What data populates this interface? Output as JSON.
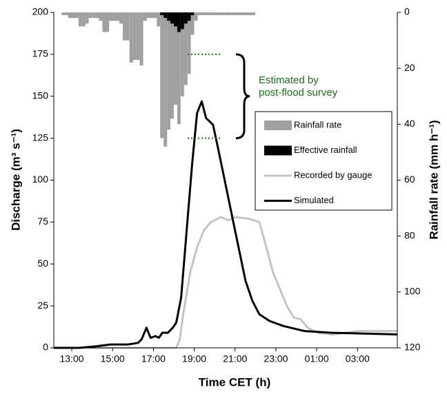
{
  "chart_data": {
    "type": "combo",
    "x_label": "Time CET (h)",
    "y_label": "Discharge (m³ s⁻¹)",
    "y2_label": "Rainfall rate (mm h⁻¹)",
    "xlim": [
      12.12,
      28.95
    ],
    "xticks": [
      {
        "value": 13,
        "label": "13:00"
      },
      {
        "value": 15,
        "label": "15:00"
      },
      {
        "value": 17,
        "label": "17:00"
      },
      {
        "value": 19,
        "label": "19:00"
      },
      {
        "value": 21,
        "label": "21:00"
      },
      {
        "value": 23,
        "label": "23:00"
      },
      {
        "value": 25,
        "label": "01:00"
      },
      {
        "value": 27,
        "label": "03:00"
      }
    ],
    "ylim": [
      0,
      200
    ],
    "yticks": [
      0,
      25,
      50,
      75,
      100,
      125,
      150,
      175,
      200
    ],
    "y2lim": [
      120,
      0
    ],
    "y2ticks": [
      0,
      20,
      40,
      60,
      80,
      100,
      120
    ],
    "annotation": {
      "text": [
        "Estimated by",
        "post-flood survey"
      ],
      "range": [
        125,
        175
      ],
      "color": "#1e6b1e"
    },
    "series": [
      {
        "name": "Rainfall rate",
        "type": "bar",
        "axis": "y2",
        "color": "#a0a0a0",
        "x": [
          12.5,
          12.67,
          12.83,
          13,
          13.17,
          13.33,
          13.5,
          13.67,
          13.83,
          14,
          14.17,
          14.33,
          14.5,
          14.67,
          14.83,
          15,
          15.17,
          15.33,
          15.5,
          15.67,
          15.83,
          16,
          16.17,
          16.33,
          16.5,
          16.67,
          16.83,
          17,
          17.17,
          17.33,
          17.5,
          17.67,
          17.83,
          18,
          18.17,
          18.33,
          18.5,
          18.67,
          18.83,
          19,
          19.17,
          19.33,
          19.5,
          19.67,
          19.83,
          20,
          20.17,
          20.33,
          20.5,
          20.67,
          20.83,
          21,
          21.17,
          21.33,
          21.5,
          21.67,
          21.83
        ],
        "values": [
          1,
          1,
          2,
          2,
          2,
          5,
          5,
          4,
          2,
          2,
          2,
          3,
          7,
          7,
          3,
          3,
          3,
          4,
          10,
          10,
          18,
          17,
          17,
          19,
          3,
          2,
          2,
          2,
          5,
          45,
          48,
          42,
          38,
          33,
          40,
          30,
          26,
          22,
          8,
          3,
          1,
          1,
          1,
          1,
          1,
          1,
          1,
          1,
          1,
          1,
          1,
          1,
          1,
          1,
          1,
          1,
          1
        ]
      },
      {
        "name": "Effective rainfall",
        "type": "bar",
        "axis": "y2",
        "color": "#000000",
        "x": [
          17.33,
          17.5,
          17.67,
          17.83,
          18,
          18.17,
          18.33,
          18.5,
          18.67,
          18.83
        ],
        "values": [
          1,
          2,
          3,
          4,
          5,
          7,
          6,
          4,
          3,
          1
        ]
      },
      {
        "name": "Recorded by gauge",
        "type": "line",
        "color": "#c4c4c4",
        "x": [
          12.12,
          18.12,
          18.29,
          18.46,
          18.8,
          19.14,
          19.47,
          19.81,
          20.32,
          20.66,
          21.0,
          21.68,
          22.19,
          22.53,
          22.86,
          23.2,
          23.54,
          23.88,
          24.22,
          24.56,
          25.07,
          25.75,
          26.42,
          27.1,
          27.78,
          28.95
        ],
        "values": [
          0,
          0,
          5,
          20,
          45,
          60,
          70,
          75,
          78,
          76,
          78,
          77,
          75,
          60,
          45,
          35,
          25,
          18,
          17,
          12,
          9,
          8,
          9,
          10,
          10,
          10
        ]
      },
      {
        "name": "Simulated",
        "type": "line",
        "color": "#000000",
        "x": [
          12.12,
          13.37,
          14.22,
          14.9,
          15.75,
          16.25,
          16.42,
          16.66,
          16.86,
          17.1,
          17.27,
          17.44,
          17.71,
          17.95,
          18.12,
          18.36,
          18.63,
          18.9,
          19.14,
          19.37,
          19.58,
          19.75,
          19.92,
          20.15,
          20.49,
          20.83,
          21.17,
          21.51,
          21.85,
          22.19,
          22.69,
          23.37,
          24.39,
          25.75,
          28.95
        ],
        "values": [
          0,
          0,
          1,
          2,
          2,
          3,
          5,
          12,
          6,
          7,
          6,
          9,
          9,
          12,
          15,
          30,
          70,
          110,
          140,
          147,
          137,
          135,
          133,
          120,
          100,
          80,
          60,
          40,
          28,
          20,
          16,
          13,
          10,
          9,
          8
        ]
      }
    ]
  }
}
